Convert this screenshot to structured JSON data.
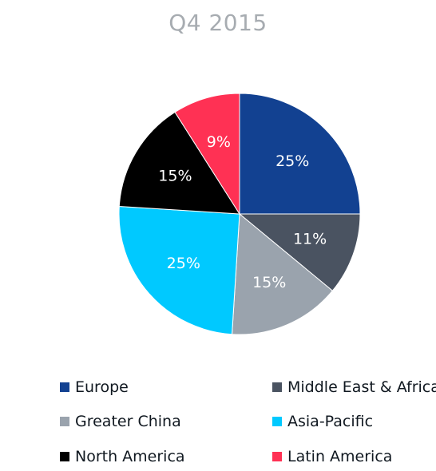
{
  "chart_data": {
    "type": "pie",
    "title": "Q4 2015",
    "slices": [
      {
        "name": "Europe",
        "value": 25,
        "label": "25%",
        "color": "#124191"
      },
      {
        "name": "Middle East & Africa",
        "value": 11,
        "label": "11%",
        "color": "#4a5361"
      },
      {
        "name": "Greater China",
        "value": 15,
        "label": "15%",
        "color": "#9aa3ad"
      },
      {
        "name": "Asia-Pacific",
        "value": 25,
        "label": "25%",
        "color": "#00c9ff"
      },
      {
        "name": "North America",
        "value": 15,
        "label": "15%",
        "color": "#000000"
      },
      {
        "name": "Latin America",
        "value": 9,
        "label": "9%",
        "color": "#ff3154"
      }
    ],
    "legend": {
      "placement": "bottom",
      "items": [
        "Europe",
        "Middle East & Africa",
        "Greater China",
        "Asia-Pacific",
        "North America",
        "Latin America"
      ]
    }
  }
}
